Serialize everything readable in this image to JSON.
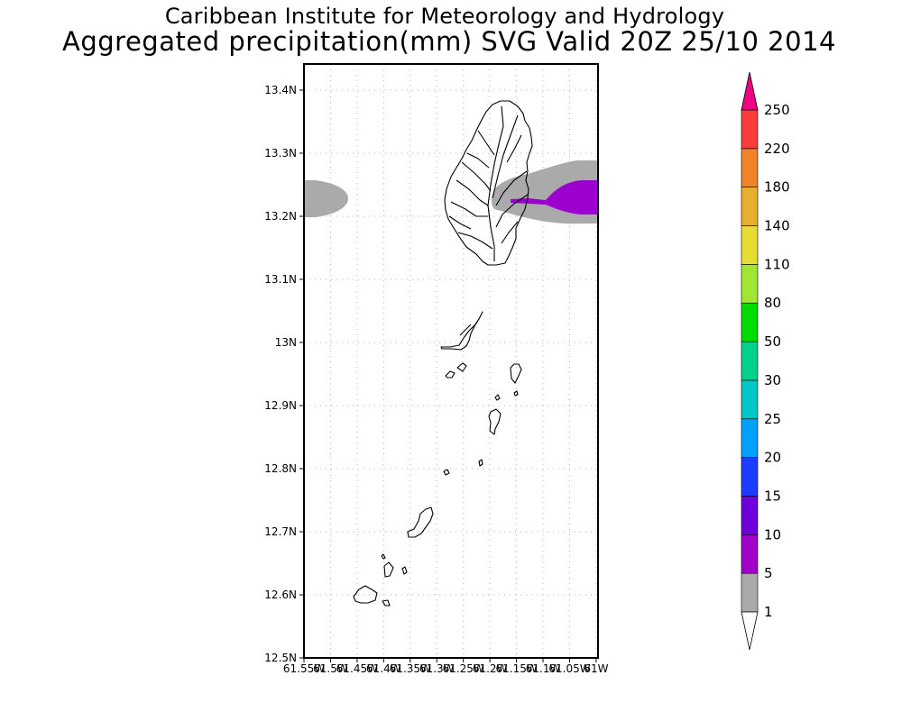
{
  "header": {
    "title": "Caribbean Institute for Meteorology and Hydrology",
    "subtitle": "Aggregated precipitation(mm) SVG Valid 20Z 25/10 2014"
  },
  "map": {
    "lat_labels": [
      "13.4N",
      "13.3N",
      "13.2N",
      "13.1N",
      "13N",
      "12.9N",
      "12.8N",
      "12.7N",
      "12.6N",
      "12.5N"
    ],
    "lon_labels": [
      "61.55W",
      "61.5W",
      "61.45W",
      "61.4W",
      "61.35W",
      "61.3W",
      "61.25W",
      "61.2W",
      "61.15W",
      "61.1W",
      "61.05W",
      "61W"
    ],
    "precip_colors": {
      "light": "#aaaaaa",
      "moderate": "#9b00cf"
    }
  },
  "colorbar": {
    "levels": [
      "1",
      "5",
      "10",
      "15",
      "20",
      "25",
      "30",
      "50",
      "80",
      "110",
      "140",
      "180",
      "220",
      "250"
    ],
    "colors": [
      "#aaaaaa",
      "#a000c8",
      "#6e00dc",
      "#1e3cff",
      "#00a0ff",
      "#00c8c8",
      "#00d28c",
      "#00dc00",
      "#a0e632",
      "#e6dc32",
      "#e6af2d",
      "#f08228",
      "#fa3c3c",
      "#f00082"
    ]
  }
}
